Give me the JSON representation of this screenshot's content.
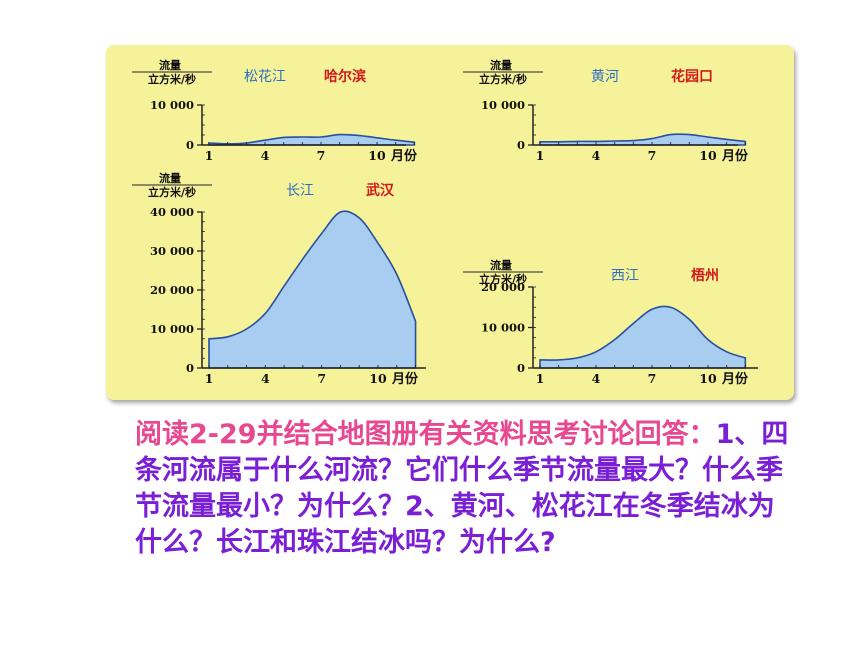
{
  "colors": {
    "panel_bg": "#f6f29a",
    "area_fill": "#a9cdf0",
    "area_stroke": "#27509e",
    "river_name": "#2a6fc1",
    "station_name": "#d01a1a",
    "axis": "#222222",
    "question_lead": "#e8488f",
    "question_body": "#7a1fd6"
  },
  "question": {
    "lead": "阅读2-29并结合地图册有关资料思考讨论回答：",
    "body": "1、四条河流属于什么河流？它们什么季节流量最大？什么季节流量最小？为什么？2、黄河、松花江在冬季结冰为什么？长江和珠江结冰吗？为什么?"
  },
  "chart_data": [
    {
      "type": "area",
      "river": "松花江",
      "station": "哈尔滨",
      "ylabel_top": "流量",
      "ylabel_bottom": "立方米/秒",
      "xlabel": "月份",
      "x": [
        1,
        2,
        3,
        4,
        5,
        6,
        7,
        8,
        9,
        10,
        11,
        12
      ],
      "values": [
        500,
        300,
        500,
        1200,
        1900,
        2000,
        2000,
        2600,
        2400,
        1800,
        1200,
        700
      ],
      "ylim": [
        0,
        10000
      ],
      "yticks": [
        0,
        10000
      ],
      "ytick_labels": [
        "0",
        "10 000"
      ],
      "xticks": [
        1,
        4,
        7,
        10
      ],
      "xtick_labels": [
        "1",
        "4",
        "7",
        "10"
      ]
    },
    {
      "type": "area",
      "river": "黄河",
      "station": "花园口",
      "ylabel_top": "流量",
      "ylabel_bottom": "立方米/秒",
      "xlabel": "月份",
      "x": [
        1,
        2,
        3,
        4,
        5,
        6,
        7,
        8,
        9,
        10,
        11,
        12
      ],
      "values": [
        800,
        800,
        900,
        900,
        1000,
        1100,
        1600,
        2600,
        2600,
        2000,
        1400,
        900
      ],
      "ylim": [
        0,
        10000
      ],
      "yticks": [
        0,
        10000
      ],
      "ytick_labels": [
        "0",
        "10 000"
      ],
      "xticks": [
        1,
        4,
        7,
        10
      ],
      "xtick_labels": [
        "1",
        "4",
        "7",
        "10"
      ]
    },
    {
      "type": "area",
      "river": "长江",
      "station": "武汉",
      "ylabel_top": "流量",
      "ylabel_bottom": "立方米/秒",
      "xlabel": "月份",
      "x": [
        1,
        2,
        3,
        4,
        5,
        6,
        7,
        8,
        9,
        10,
        11,
        12
      ],
      "values": [
        7500,
        8000,
        10000,
        14000,
        21000,
        28000,
        34500,
        40000,
        38500,
        32000,
        24000,
        12000
      ],
      "ylim": [
        0,
        40000
      ],
      "yticks": [
        0,
        10000,
        20000,
        30000,
        40000
      ],
      "ytick_labels": [
        "0",
        "10 000",
        "20 000",
        "30 000",
        "40 000"
      ],
      "xticks": [
        1,
        4,
        7,
        10
      ],
      "xtick_labels": [
        "1",
        "4",
        "7",
        "10"
      ]
    },
    {
      "type": "area",
      "river": "西江",
      "station": "梧州",
      "ylabel_top": "流量",
      "ylabel_bottom": "立方米/秒",
      "xlabel": "月份",
      "x": [
        1,
        2,
        3,
        4,
        5,
        6,
        7,
        8,
        9,
        10,
        11,
        12
      ],
      "values": [
        2000,
        2000,
        2500,
        4000,
        7000,
        11000,
        14500,
        15000,
        12000,
        7000,
        4000,
        2500
      ],
      "ylim": [
        0,
        20000
      ],
      "yticks": [
        0,
        10000,
        20000
      ],
      "ytick_labels": [
        "0",
        "10 000",
        "20 000"
      ],
      "xticks": [
        1,
        4,
        7,
        10
      ],
      "xtick_labels": [
        "1",
        "4",
        "7",
        "10"
      ]
    }
  ]
}
